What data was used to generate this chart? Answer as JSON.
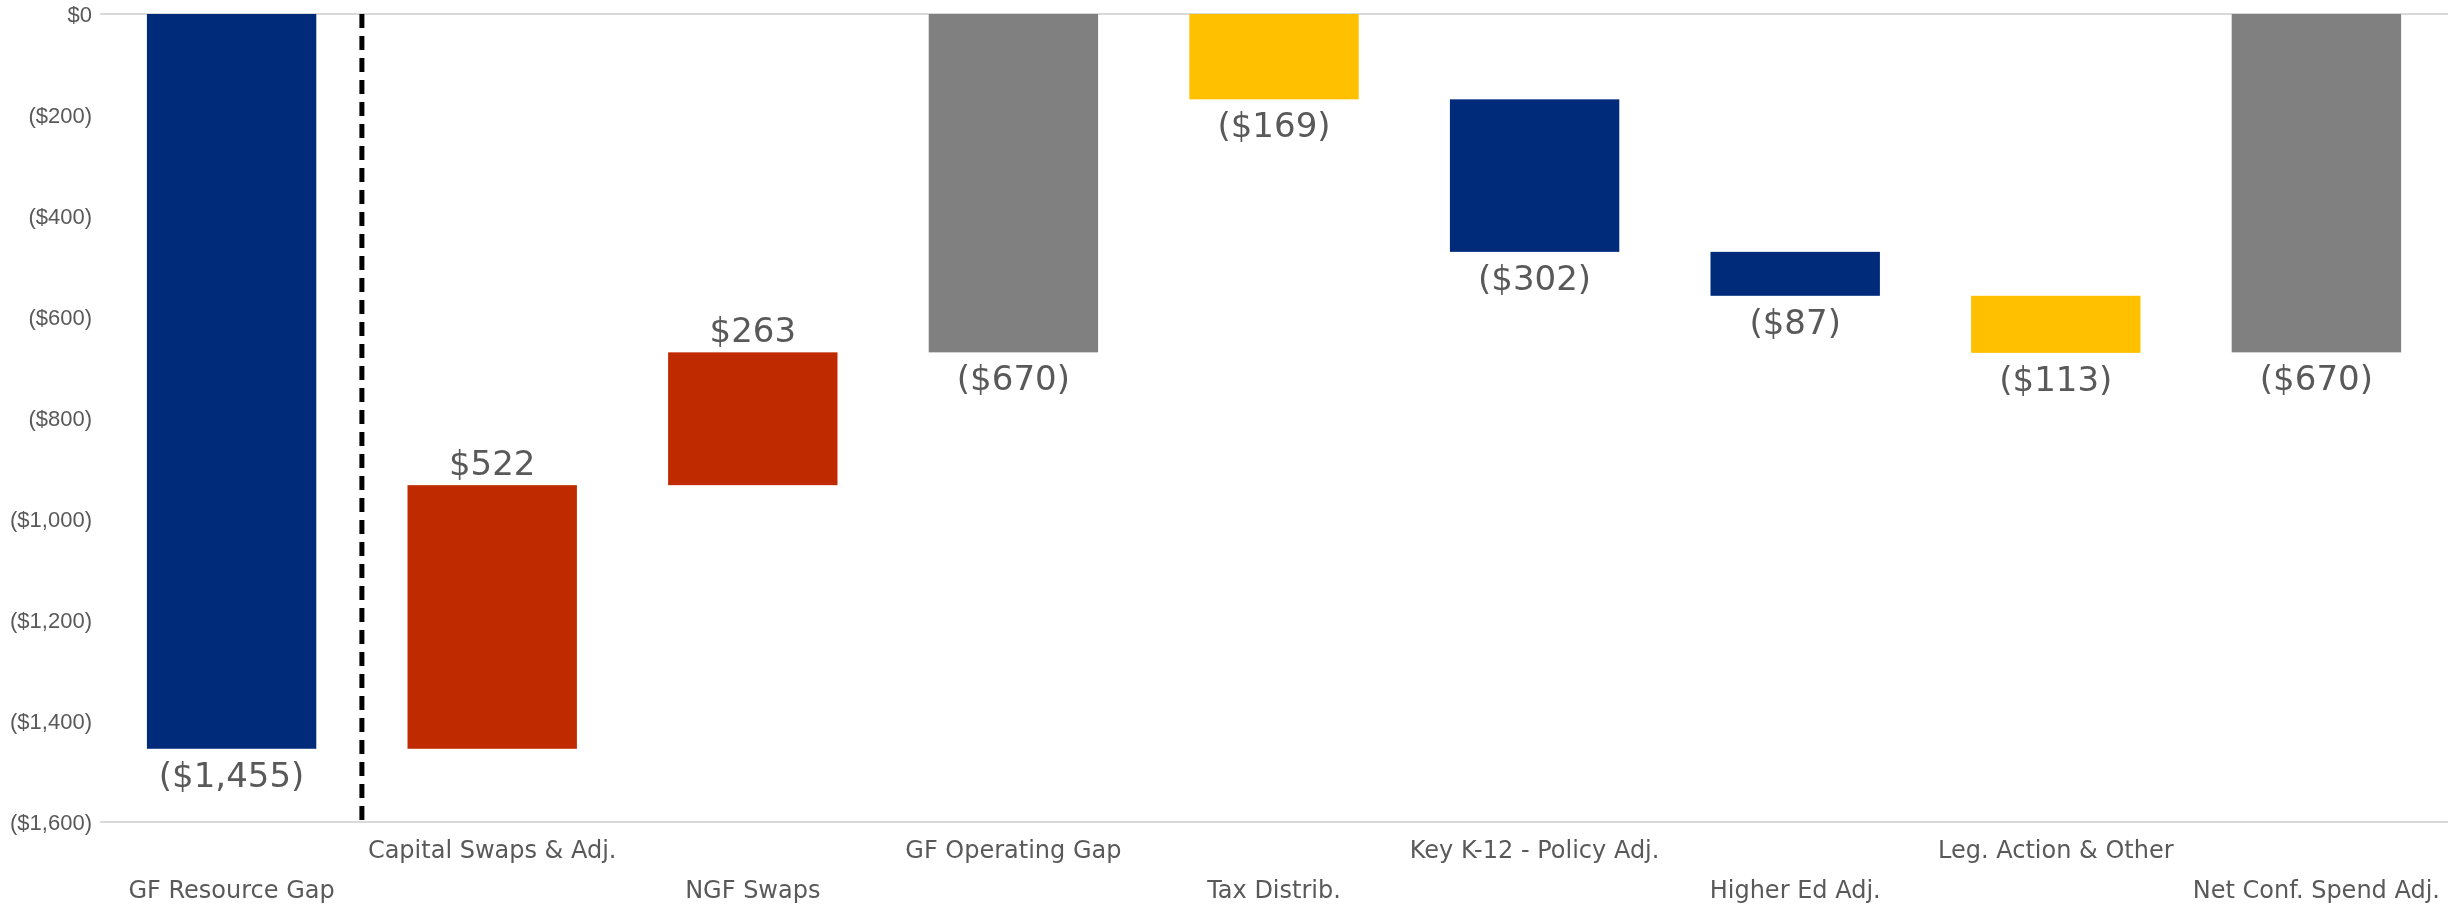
{
  "chart_data": {
    "type": "bar",
    "categories": [
      "GF Resource Gap",
      "Capital Swaps & Adj.",
      "NGF Swaps",
      "GF Operating Gap",
      "Tax Distrib.",
      "Key K-12 - Policy Adj.",
      "Higher Ed Adj.",
      "Leg. Action & Other",
      "Net Conf. Spend Adj."
    ],
    "values": [
      -1455,
      522,
      263,
      -670,
      -169,
      -302,
      -87,
      -113,
      -670
    ],
    "base": [
      0,
      -1455,
      -933,
      0,
      0,
      -169,
      -471,
      -558,
      0
    ],
    "colors": [
      "#002a7a",
      "#bf2a00",
      "#bf2a00",
      "#808080",
      "#ffc000",
      "#002a7a",
      "#002a7a",
      "#ffc000",
      "#808080"
    ],
    "value_labels": [
      "($1,455)",
      "$522",
      "$263",
      "($670)",
      "($169)",
      "($302)",
      "($87)",
      "($113)",
      "($670)"
    ],
    "ylim": [
      -1600,
      0
    ],
    "yticks": [
      {
        "value": 0,
        "label": "$0"
      },
      {
        "value": -200,
        "label": "($200)"
      },
      {
        "value": -400,
        "label": "($400)"
      },
      {
        "value": -600,
        "label": "($600)"
      },
      {
        "value": -800,
        "label": "($800)"
      },
      {
        "value": -1000,
        "label": "($1,000)"
      },
      {
        "value": -1200,
        "label": "($1,200)"
      },
      {
        "value": -1400,
        "label": "($1,400)"
      },
      {
        "value": -1600,
        "label": "($1,600)"
      }
    ],
    "grid": false
  }
}
